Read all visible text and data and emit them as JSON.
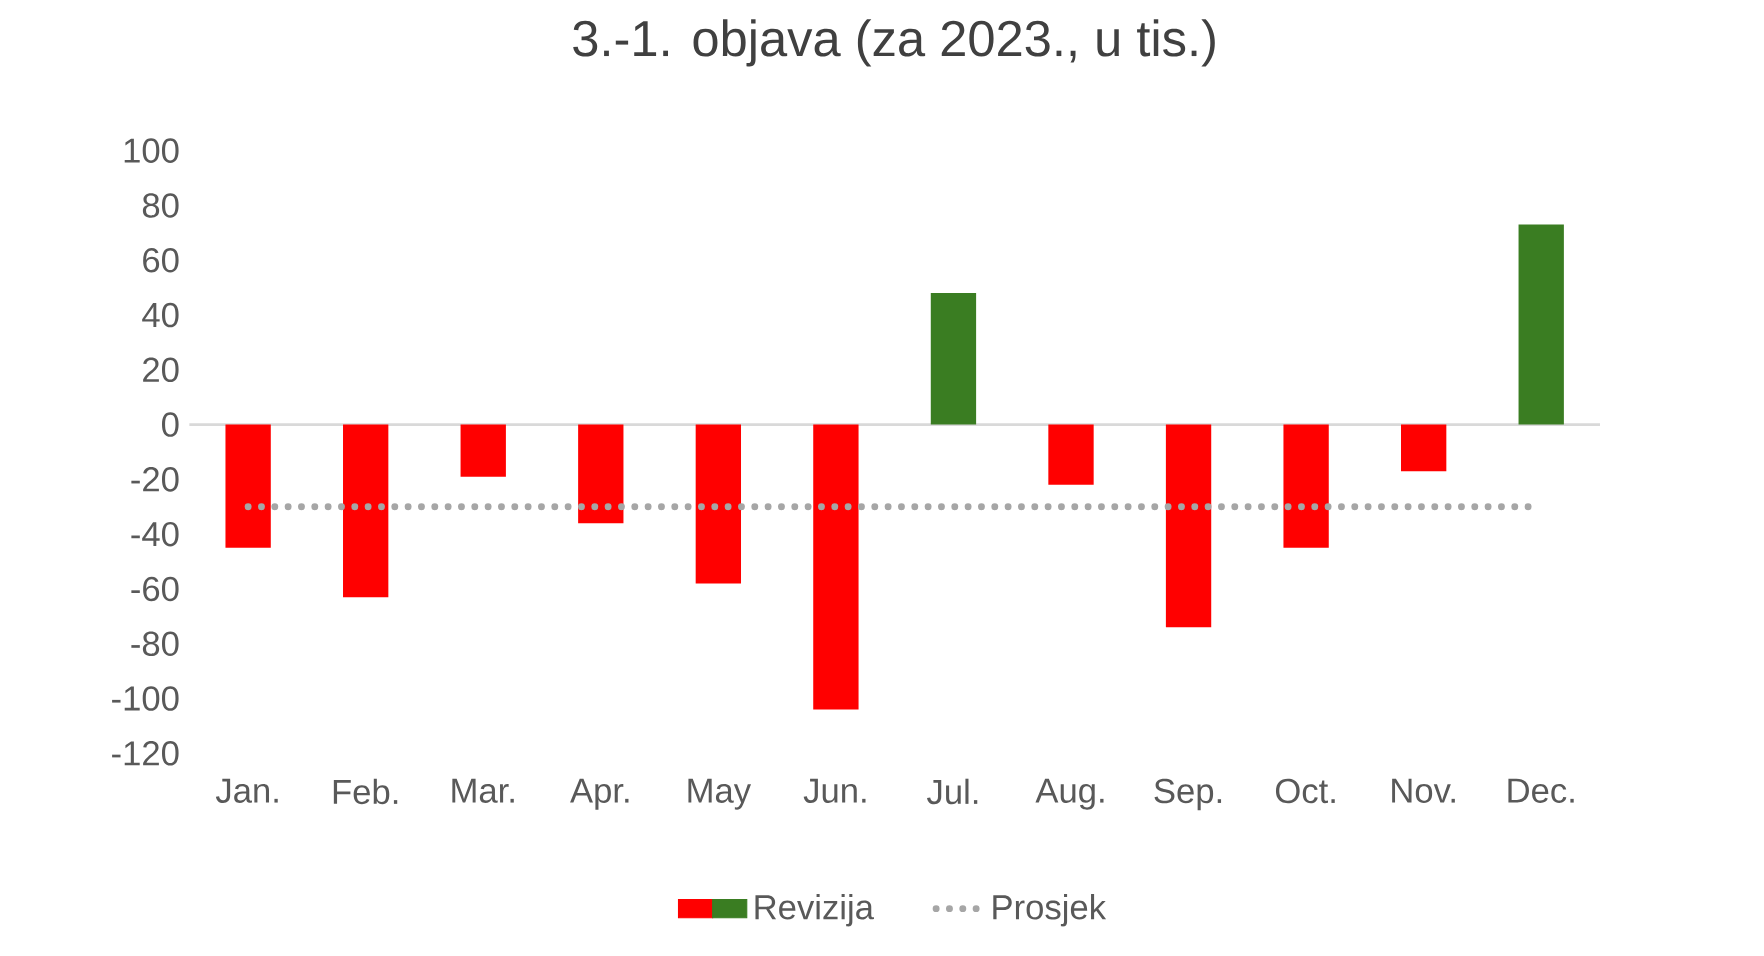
{
  "chart_data": {
    "type": "bar",
    "title": "3.-1. objava (za 2023., u tis.)",
    "categories": [
      "Jan.",
      "Feb.",
      "Mar.",
      "Apr.",
      "May",
      "Jun.",
      "Jul.",
      "Aug.",
      "Sep.",
      "Oct.",
      "Nov.",
      "Dec."
    ],
    "series": [
      {
        "name": "Revizija",
        "values": [
          -45,
          -63,
          -19,
          -36,
          -58,
          -104,
          48,
          -22,
          -74,
          -45,
          -17,
          73
        ],
        "colors": [
          "#ff0000",
          "#ff0000",
          "#ff0000",
          "#ff0000",
          "#ff0000",
          "#ff0000",
          "#3a7d22",
          "#ff0000",
          "#ff0000",
          "#ff0000",
          "#ff0000",
          "#3a7d22"
        ]
      },
      {
        "name": "Prosjek",
        "type": "line",
        "color": "#a6a6a6",
        "line_style": "dotted",
        "marker": "none",
        "values": [
          -30,
          -30,
          -30,
          -30,
          -30,
          -30,
          -30,
          -30,
          -30,
          -30,
          -30,
          -30
        ]
      }
    ],
    "ylim": [
      -120,
      100
    ],
    "yticks": [
      -120,
      -100,
      -80,
      -60,
      -40,
      -20,
      0,
      20,
      40,
      60,
      80,
      100
    ],
    "legend": "bottom"
  }
}
